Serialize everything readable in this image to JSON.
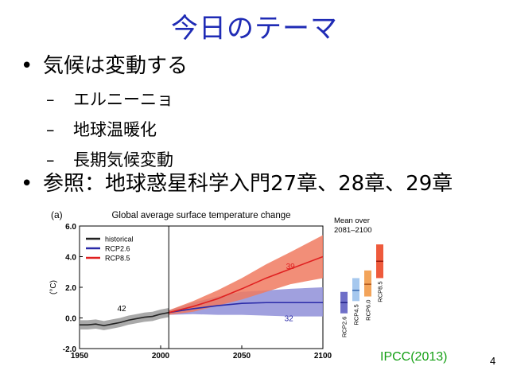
{
  "slide": {
    "title": "今日のテーマ",
    "bullets": [
      {
        "text": "気候は変動する",
        "subs": [
          "エルニーニョ",
          "地球温暖化",
          "長期気候変動"
        ]
      }
    ],
    "reference": "参照：地球惑星科学入門27章、28章、29章",
    "bullet_glyph": "•",
    "dash_glyph": "–",
    "credit": "IPCC(2013)",
    "page_number": "4"
  },
  "chart_data": {
    "type": "line",
    "panel_label": "(a)",
    "title": "Global average surface temperature change",
    "ylabel": "(°C)",
    "xlim": [
      1950,
      2100
    ],
    "ylim": [
      -2.0,
      6.0
    ],
    "xticks": [
      1950,
      2000,
      2050,
      2100
    ],
    "yticks": [
      -2.0,
      0.0,
      2.0,
      4.0,
      6.0
    ],
    "ytick_labels": [
      "-2.0",
      "0.0",
      "2.0",
      "4.0",
      "6.0"
    ],
    "divider_year": 2005,
    "legend": [
      "historical",
      "RCP2.6",
      "RCP8.5"
    ],
    "series": [
      {
        "name": "historical",
        "color": "#222222",
        "band_color": "#9a9a9a",
        "model_count": "42",
        "x": [
          1950,
          1955,
          1960,
          1965,
          1970,
          1975,
          1980,
          1985,
          1990,
          1995,
          2000,
          2005
        ],
        "y": [
          -0.45,
          -0.45,
          -0.4,
          -0.5,
          -0.4,
          -0.3,
          -0.15,
          -0.05,
          0.05,
          0.1,
          0.25,
          0.35
        ],
        "lower": [
          -0.75,
          -0.75,
          -0.7,
          -0.8,
          -0.7,
          -0.6,
          -0.45,
          -0.35,
          -0.25,
          -0.2,
          -0.05,
          0.05
        ],
        "upper": [
          -0.15,
          -0.15,
          -0.1,
          -0.2,
          -0.1,
          0.0,
          0.15,
          0.25,
          0.35,
          0.4,
          0.55,
          0.65
        ]
      },
      {
        "name": "RCP2.6",
        "color": "#2a2aa8",
        "band_color": "#8f8fd8",
        "model_count": "32",
        "x": [
          2005,
          2020,
          2035,
          2050,
          2065,
          2080,
          2100
        ],
        "y": [
          0.35,
          0.6,
          0.8,
          0.95,
          1.0,
          1.0,
          1.0
        ],
        "lower": [
          0.2,
          0.25,
          0.2,
          0.2,
          0.15,
          0.1,
          0.1
        ],
        "upper": [
          0.5,
          1.0,
          1.4,
          1.7,
          1.8,
          1.9,
          2.0
        ]
      },
      {
        "name": "RCP8.5",
        "color": "#e02020",
        "band_color": "#f07a60",
        "model_count": "39",
        "x": [
          2005,
          2020,
          2035,
          2050,
          2065,
          2080,
          2100
        ],
        "y": [
          0.35,
          0.75,
          1.25,
          1.9,
          2.6,
          3.2,
          4.0
        ],
        "lower": [
          0.2,
          0.4,
          0.8,
          1.2,
          1.7,
          2.2,
          2.6
        ],
        "upper": [
          0.5,
          1.1,
          1.8,
          2.6,
          3.5,
          4.3,
          5.4
        ]
      }
    ],
    "mean_over": {
      "title_line1": "Mean over",
      "title_line2": "2081–2100",
      "bars": [
        {
          "label": "RCP2.6",
          "low": 0.3,
          "high": 1.7,
          "mean": 1.0,
          "color": "#6f6fc8",
          "mean_color": "#222288"
        },
        {
          "label": "RCP4.5",
          "low": 1.1,
          "high": 2.6,
          "mean": 1.8,
          "color": "#a6c8ee",
          "mean_color": "#3a6ab0"
        },
        {
          "label": "RCP6.0",
          "low": 1.4,
          "high": 3.1,
          "mean": 2.2,
          "color": "#f3a45a",
          "mean_color": "#b2561a"
        },
        {
          "label": "RCP8.5",
          "low": 2.6,
          "high": 4.8,
          "mean": 3.7,
          "color": "#ee5a3c",
          "mean_color": "#9c1a0c"
        }
      ]
    }
  }
}
